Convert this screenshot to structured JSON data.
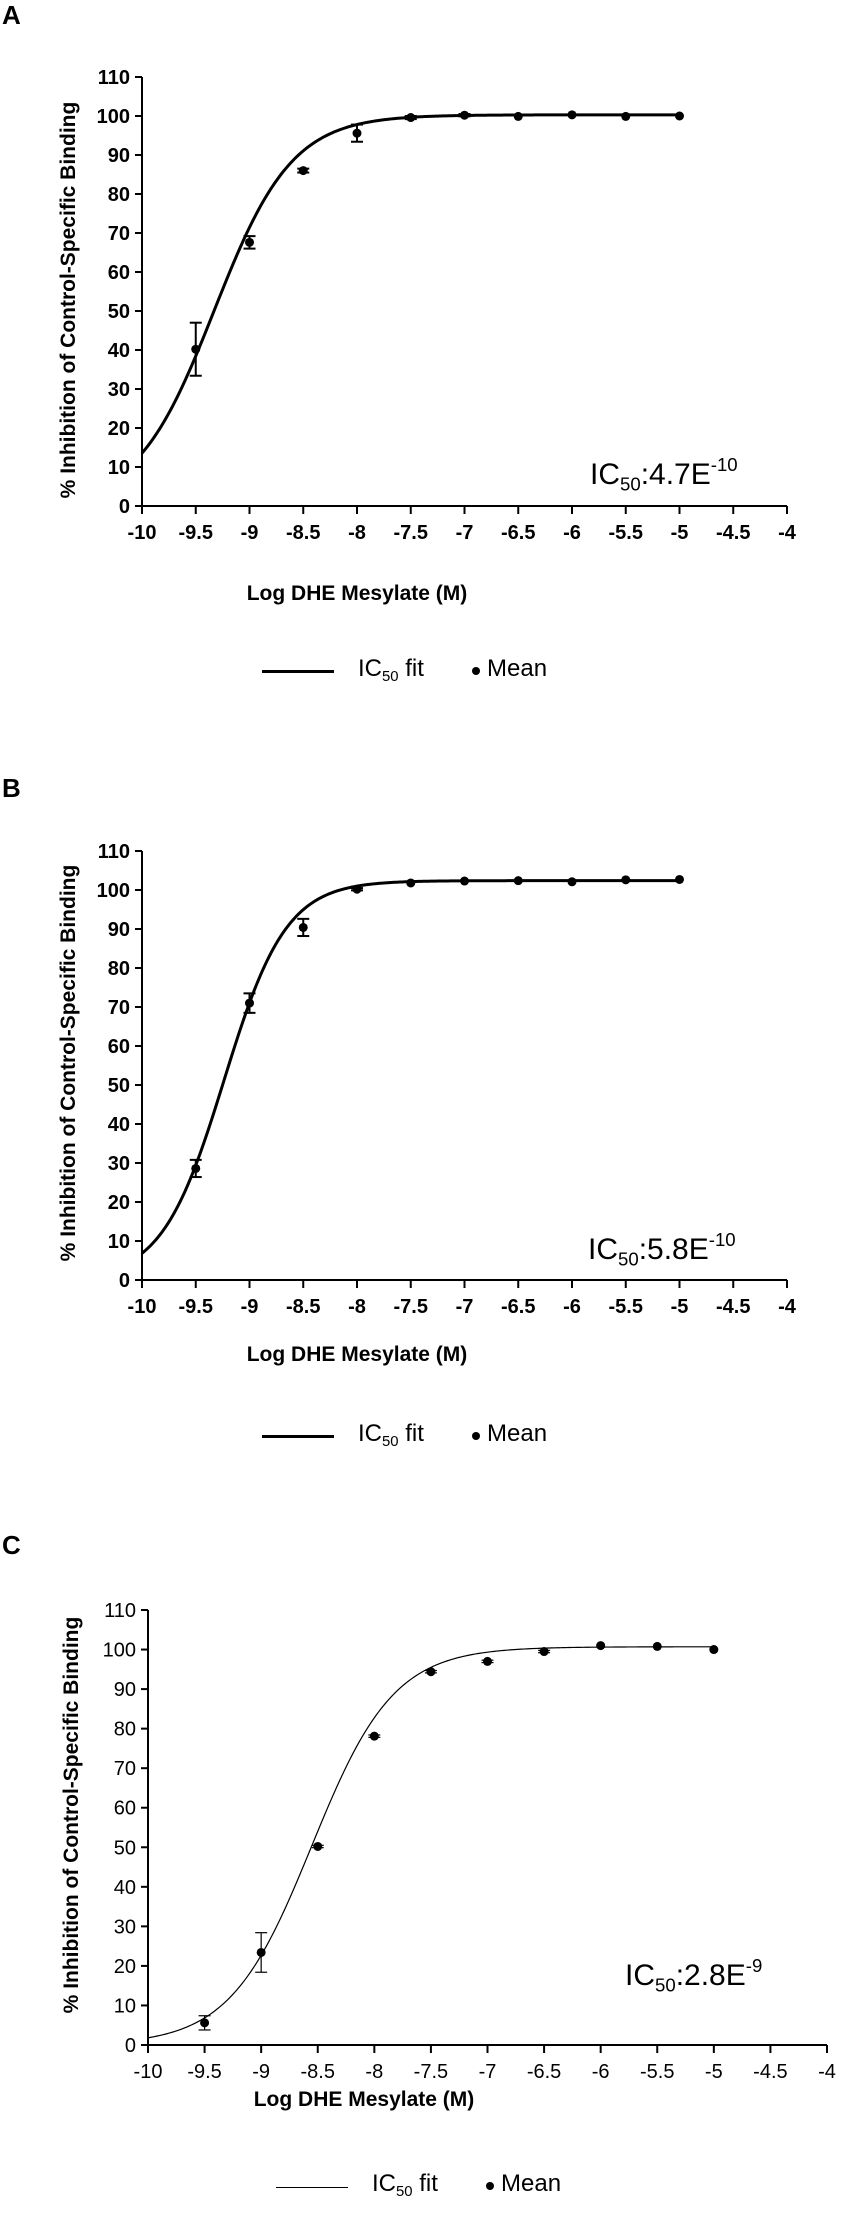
{
  "chart_data": [
    {
      "panel_label": "A",
      "type": "scatter",
      "xlabel": "Log DHE Mesylate (M)",
      "ylabel": "% Inhibition of Control-Specific Binding",
      "xlim": [
        -10,
        -4
      ],
      "ylim": [
        0,
        110
      ],
      "x_ticks": [
        "-10",
        "-9.5",
        "-9",
        "-8.5",
        "-8",
        "-7.5",
        "-7",
        "-6.5",
        "-6",
        "-5.5",
        "-5",
        "-4.5",
        "-4"
      ],
      "y_ticks": [
        "0",
        "10",
        "20",
        "30",
        "40",
        "50",
        "60",
        "70",
        "80",
        "90",
        "100",
        "110"
      ],
      "annotation": {
        "prefix": "IC",
        "sub": "50",
        "mid": ":4.7E",
        "sup": "-10"
      },
      "legend": {
        "fit_label": "IC",
        "fit_sub": "50",
        "fit_suffix": " fit",
        "mean_label": "Mean"
      },
      "fit": {
        "bottom": 0,
        "top": 100.3,
        "log_ic50": -9.328,
        "hill": 1.2
      },
      "series": [
        {
          "name": "Mean",
          "x": [
            -9.5,
            -9,
            -8.5,
            -8,
            -7.5,
            -7,
            -6.5,
            -6,
            -5.5,
            -5
          ],
          "y": [
            40.2,
            67.6,
            86,
            95.6,
            99.6,
            100.2,
            99.9,
            100.3,
            99.9,
            100
          ],
          "err": [
            6.8,
            1.6,
            0.5,
            2.2,
            0.4,
            0.3,
            0,
            0,
            0,
            0
          ]
        }
      ]
    },
    {
      "panel_label": "B",
      "type": "scatter",
      "xlabel": "Log DHE Mesylate (M)",
      "ylabel": "% Inhibition of Control-Specific Binding",
      "xlim": [
        -10,
        -4
      ],
      "ylim": [
        0,
        110
      ],
      "x_ticks": [
        "-10",
        "-9.5",
        "-9",
        "-8.5",
        "-8",
        "-7.5",
        "-7",
        "-6.5",
        "-6",
        "-5.5",
        "-5",
        "-4.5",
        "-4"
      ],
      "y_ticks": [
        "0",
        "10",
        "20",
        "30",
        "40",
        "50",
        "60",
        "70",
        "80",
        "90",
        "100",
        "110"
      ],
      "annotation": {
        "prefix": "IC",
        "sub": "50",
        "mid": ":5.8E",
        "sup": "-10"
      },
      "legend": {
        "fit_label": "IC",
        "fit_sub": "50",
        "fit_suffix": " fit",
        "mean_label": "Mean"
      },
      "fit": {
        "bottom": 0,
        "top": 102.4,
        "log_ic50": -9.237,
        "hill": 1.5
      },
      "series": [
        {
          "name": "Mean",
          "x": [
            -9.5,
            -9,
            -8.5,
            -8,
            -7.5,
            -7,
            -6.5,
            -6,
            -5.5,
            -5
          ],
          "y": [
            28.6,
            71,
            90.4,
            100.2,
            101.8,
            102.3,
            102.4,
            102.1,
            102.6,
            102.7
          ],
          "err": [
            2.2,
            2.5,
            2.2,
            0.3,
            0,
            0,
            0,
            0,
            0,
            0
          ]
        }
      ]
    },
    {
      "panel_label": "C",
      "type": "scatter",
      "xlabel": "Log DHE Mesylate (M)",
      "ylabel": "% Inhibition of Control-Specific Binding",
      "xlim": [
        -10,
        -4
      ],
      "ylim": [
        0,
        110
      ],
      "x_ticks": [
        "-10",
        "-9.5",
        "-9",
        "-8.5",
        "-8",
        "-7.5",
        "-7",
        "-6.5",
        "-6",
        "-5.5",
        "-5",
        "-4.5",
        "-4"
      ],
      "y_ticks": [
        "0",
        "10",
        "20",
        "30",
        "40",
        "50",
        "60",
        "70",
        "80",
        "90",
        "100",
        "110"
      ],
      "annotation": {
        "prefix": "IC",
        "sub": "50",
        "mid": ":2.8E",
        "sup": "-9"
      },
      "legend": {
        "fit_label": "IC",
        "fit_sub": "50",
        "fit_suffix": " fit",
        "mean_label": "Mean"
      },
      "fit": {
        "bottom": 0,
        "top": 100.7,
        "log_ic50": -8.553,
        "hill": 1.2
      },
      "series": [
        {
          "name": "Mean",
          "x": [
            -9.5,
            -9,
            -8.5,
            -8,
            -7.5,
            -7,
            -6.5,
            -6,
            -5.5,
            -5
          ],
          "y": [
            5.6,
            23.4,
            50.2,
            78.1,
            94.4,
            97,
            99.5,
            101,
            100.8,
            100
          ],
          "err": [
            1.8,
            5,
            0.3,
            0.3,
            0.3,
            0.3,
            0.3,
            0,
            0,
            0
          ]
        }
      ]
    }
  ]
}
